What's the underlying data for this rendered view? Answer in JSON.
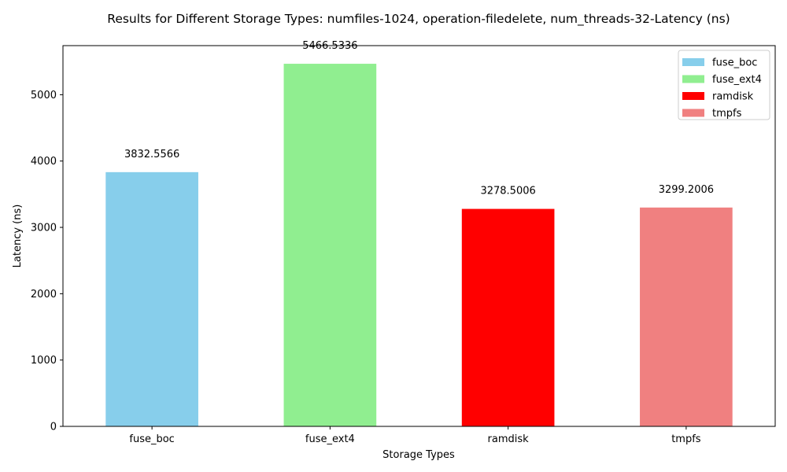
{
  "chart_data": {
    "type": "bar",
    "title": "Results for Different Storage Types: numfiles-1024, operation-filedelete, num_threads-32-Latency (ns)",
    "xlabel": "Storage Types",
    "ylabel": "Latency (ns)",
    "categories": [
      "fuse_boc",
      "fuse_ext4",
      "ramdisk",
      "tmpfs"
    ],
    "values": [
      3832.5566,
      5466.5336,
      3278.5006,
      3299.2006
    ],
    "value_labels": [
      "3832.5566",
      "5466.5336",
      "3278.5006",
      "3299.2006"
    ],
    "colors": [
      "#87CEEB",
      "#90EE90",
      "#FF0000",
      "#F08080"
    ],
    "ylim": [
      0,
      5740
    ],
    "yticks": [
      0,
      1000,
      2000,
      3000,
      4000,
      5000
    ],
    "ytick_labels": [
      "0",
      "1000",
      "2000",
      "3000",
      "4000",
      "5000"
    ],
    "legend": {
      "position": "top-right",
      "entries": [
        "fuse_boc",
        "fuse_ext4",
        "ramdisk",
        "tmpfs"
      ]
    },
    "grid": false
  }
}
